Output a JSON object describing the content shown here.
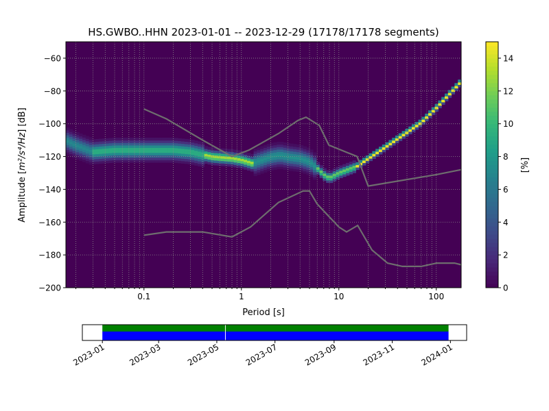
{
  "chart_data": [
    {
      "type": "heatmap",
      "title": "HS.GWBO..HHN   2023-01-01 -- 2023-12-29  (17178/17178 segments)",
      "xlabel": "Period [s]",
      "ylabel_main": "Amplitude [",
      "ylabel_math": "m²/s⁴/Hz",
      "ylabel_tail": "] [dB]",
      "x_scale": "log",
      "xlim": [
        0.0158,
        180
      ],
      "ylim": [
        -200,
        -50
      ],
      "x_ticks": [
        {
          "value": 0.1,
          "label": "0.1"
        },
        {
          "value": 1,
          "label": "1"
        },
        {
          "value": 10,
          "label": "10"
        },
        {
          "value": 100,
          "label": "100"
        }
      ],
      "y_ticks": [
        {
          "value": -60,
          "label": "−60"
        },
        {
          "value": -80,
          "label": "−80"
        },
        {
          "value": -100,
          "label": "−100"
        },
        {
          "value": -120,
          "label": "−120"
        },
        {
          "value": -140,
          "label": "−140"
        },
        {
          "value": -160,
          "label": "−160"
        },
        {
          "value": -180,
          "label": "−180"
        },
        {
          "value": -200,
          "label": "−200"
        }
      ],
      "grid": "dotted",
      "colorbar": {
        "label": "[%]",
        "range": [
          0,
          15
        ],
        "ticks": [
          {
            "value": 0,
            "label": "0"
          },
          {
            "value": 2,
            "label": "2"
          },
          {
            "value": 4,
            "label": "4"
          },
          {
            "value": 6,
            "label": "6"
          },
          {
            "value": 8,
            "label": "8"
          },
          {
            "value": 10,
            "label": "10"
          },
          {
            "value": 12,
            "label": "12"
          },
          {
            "value": 14,
            "label": "14"
          }
        ]
      },
      "mode_path": [
        [
          0.0158,
          -110
        ],
        [
          0.02,
          -113
        ],
        [
          0.03,
          -117
        ],
        [
          0.05,
          -116
        ],
        [
          0.1,
          -116
        ],
        [
          0.2,
          -116
        ],
        [
          0.3,
          -117
        ],
        [
          0.5,
          -120
        ],
        [
          0.8,
          -121
        ],
        [
          1.0,
          -122
        ],
        [
          1.3,
          -124
        ],
        [
          1.6,
          -122
        ],
        [
          2.0,
          -120
        ],
        [
          2.5,
          -119
        ],
        [
          3.0,
          -120
        ],
        [
          4.0,
          -121
        ],
        [
          5.0,
          -123
        ],
        [
          6.0,
          -127
        ],
        [
          7.0,
          -131
        ],
        [
          8.0,
          -133
        ],
        [
          10,
          -130
        ],
        [
          15,
          -126
        ],
        [
          20,
          -121
        ],
        [
          30,
          -114
        ],
        [
          50,
          -105
        ],
        [
          70,
          -99
        ],
        [
          100,
          -90
        ],
        [
          150,
          -79
        ],
        [
          180,
          -74
        ]
      ],
      "noise_models": [
        {
          "name": "new_high_noise_model",
          "points": [
            [
              0.1,
              -91
            ],
            [
              0.17,
              -97
            ],
            [
              0.4,
              -110
            ],
            [
              0.8,
              -120
            ],
            [
              1.2,
              -116
            ],
            [
              2.4,
              -106
            ],
            [
              3.8,
              -98
            ],
            [
              4.6,
              -96
            ],
            [
              6.3,
              -101
            ],
            [
              7.9,
              -113
            ],
            [
              15.4,
              -120
            ],
            [
              20,
              -138
            ],
            [
              100,
              -131
            ],
            [
              180,
              -128
            ]
          ]
        },
        {
          "name": "new_low_noise_model",
          "points": [
            [
              0.1,
              -168
            ],
            [
              0.17,
              -166
            ],
            [
              0.4,
              -166
            ],
            [
              0.8,
              -169
            ],
            [
              1.24,
              -163
            ],
            [
              2.4,
              -148
            ],
            [
              4.3,
              -141
            ],
            [
              5.0,
              -141
            ],
            [
              6.0,
              -149
            ],
            [
              10,
              -163
            ],
            [
              12,
              -166
            ],
            [
              15.6,
              -162
            ],
            [
              21.9,
              -177
            ],
            [
              31.6,
              -185
            ],
            [
              45,
              -187
            ],
            [
              70,
              -187
            ],
            [
              101,
              -185
            ],
            [
              154,
              -185
            ],
            [
              180,
              -186
            ]
          ]
        }
      ]
    },
    {
      "type": "timeline",
      "x_ticks": [
        "2023-01",
        "2023-03",
        "2023-05",
        "2023-07",
        "2023-09",
        "2023-11",
        "2024-01"
      ],
      "data_start": "2023-01-01",
      "data_end": "2023-12-29",
      "gap_date": "2023-05-10",
      "colors": {
        "upper": "#008000",
        "lower": "#0000ff",
        "gap": "#ffffff"
      }
    }
  ]
}
